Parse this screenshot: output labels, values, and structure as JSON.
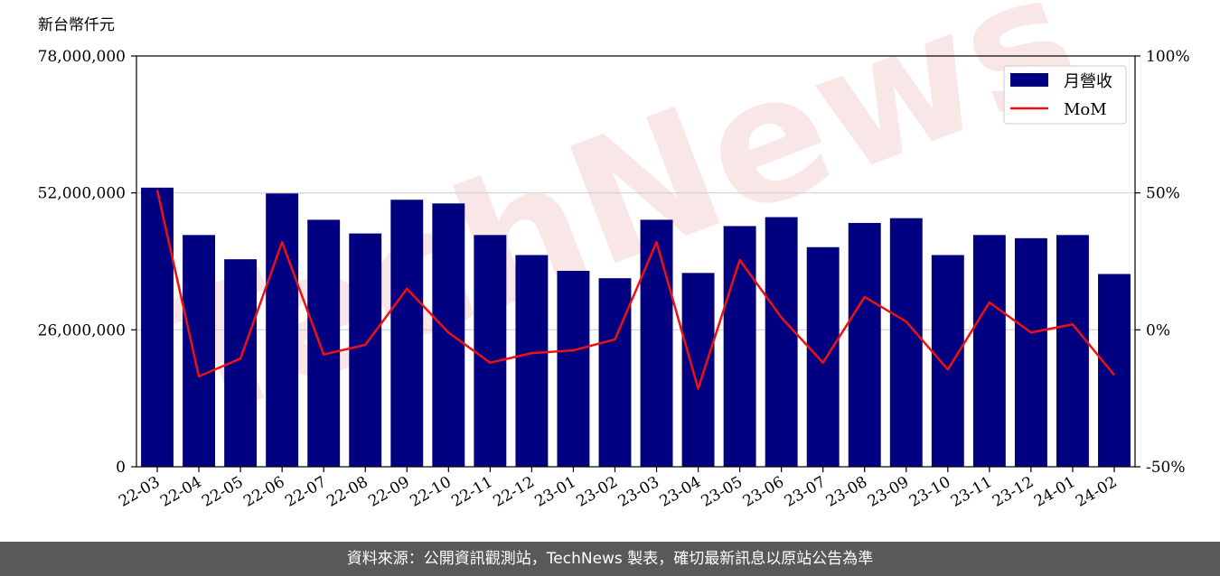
{
  "chart_data": {
    "type": "bar",
    "categories": [
      "22-03",
      "22-04",
      "22-05",
      "22-06",
      "22-07",
      "22-08",
      "22-09",
      "22-10",
      "22-11",
      "22-12",
      "23-01",
      "23-02",
      "23-03",
      "23-04",
      "23-05",
      "23-06",
      "23-07",
      "23-08",
      "23-09",
      "23-10",
      "23-11",
      "23-12",
      "24-01",
      "24-02"
    ],
    "series": [
      {
        "name": "月營收",
        "type": "bar",
        "axis": "left",
        "color": "#000080",
        "values": [
          53000000,
          44000000,
          39400000,
          51900000,
          46900000,
          44300000,
          50700000,
          50000000,
          44000000,
          40200000,
          37200000,
          35800000,
          46900000,
          36800000,
          45700000,
          47400000,
          41700000,
          46300000,
          47200000,
          40200000,
          44000000,
          43400000,
          44000000,
          36600000
        ]
      },
      {
        "name": "MoM",
        "type": "line",
        "axis": "right",
        "color": "#ee1111",
        "values": [
          51,
          -17,
          -10.5,
          32,
          -9,
          -5.5,
          15,
          -1,
          -12,
          -8.5,
          -7.5,
          -3.5,
          32,
          -21.5,
          25.5,
          4.5,
          -12,
          12,
          3,
          -14.5,
          10,
          -1,
          2,
          -16.5
        ]
      }
    ],
    "y_left": {
      "unit_label": "新台幣仟元",
      "ylim": [
        0,
        78000000
      ],
      "ticks": [
        0,
        26000000,
        52000000,
        78000000
      ],
      "tick_labels": [
        "0",
        "26,000,000",
        "52,000,000",
        "78,000,000"
      ]
    },
    "y_right": {
      "ylim": [
        -50,
        100
      ],
      "ticks": [
        -50,
        0,
        50,
        100
      ],
      "tick_labels": [
        "-50%",
        "0%",
        "50%",
        "100%"
      ]
    },
    "grid": "horizontal",
    "legend": {
      "placement": "top-right",
      "entries": [
        "月營收",
        "MoM"
      ]
    },
    "watermark": "TechNews"
  },
  "footer": {
    "source_text": "資料來源：公開資訊觀測站，TechNews 製表，確切最新訊息以原站公告為準"
  }
}
